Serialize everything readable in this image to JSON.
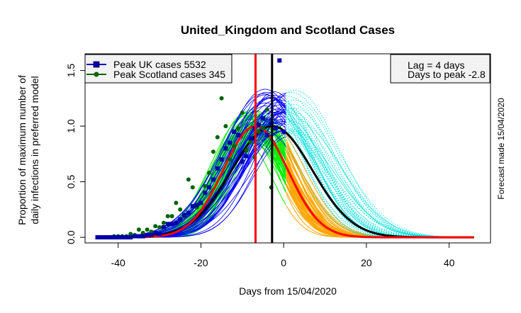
{
  "chart_data": {
    "type": "line",
    "title": "United_Kingdom and Scotland Cases",
    "xlabel": "Days from 15/04/2020",
    "ylabel_line1": "Proportion of maximum number of",
    "ylabel_line2": "daily infections in preferred model",
    "right_label": "Forecast made 15/04/2020",
    "xlim": [
      -48,
      50
    ],
    "ylim": [
      -0.05,
      1.65
    ],
    "xticks": [
      -40,
      -20,
      0,
      20,
      40
    ],
    "yticks": [
      0.0,
      0.5,
      1.0,
      1.5
    ],
    "xtick_labels": [
      "-40",
      "-20",
      "0",
      "20",
      "40"
    ],
    "ytick_labels": [
      "0.0",
      "0.5",
      "1.0",
      "1.5"
    ],
    "legend": {
      "position": "top-left",
      "entries": [
        {
          "label": "Peak UK cases 5532",
          "color": "#0000cc",
          "marker": "square"
        },
        {
          "label": "Peak Scotland cases 345",
          "color": "#ff0000",
          "marker": "circle"
        }
      ]
    },
    "info_box": {
      "position": "top-right",
      "lines": [
        "Lag =  4 days",
        "Days to peak -2.8"
      ]
    },
    "vertical_lines": [
      {
        "x": -6.8,
        "color": "#ff0000"
      },
      {
        "x": -2.8,
        "color": "#000000"
      }
    ],
    "models": {
      "uk_center": -2.8,
      "uk_sigma": 9.7,
      "scot_center": -6.8,
      "scot_sigma": 7.8,
      "forecast_start": 0.6,
      "x_start": -45,
      "x_end": 46
    },
    "uk_points": {
      "x": [
        -45,
        -44,
        -43,
        -42,
        -41,
        -40,
        -39,
        -38,
        -37,
        -36,
        -35,
        -34,
        -33,
        -32,
        -31,
        -30,
        -29,
        -28,
        -27,
        -26,
        -25,
        -24,
        -23,
        -22,
        -21,
        -20,
        -19,
        -18,
        -17,
        -16,
        -15,
        -14,
        -13,
        -12,
        -11,
        -10,
        -9,
        -8,
        -7,
        -6,
        -5,
        -4,
        -3,
        -2,
        -1,
        0
      ],
      "y": [
        0.0,
        0.0,
        0.0,
        0.0,
        0.0,
        0.0,
        0.0,
        0.0,
        0.0,
        0.01,
        0.01,
        0.01,
        0.02,
        0.02,
        0.04,
        0.03,
        0.09,
        0.12,
        0.12,
        0.13,
        0.16,
        0.2,
        0.22,
        0.28,
        0.29,
        0.31,
        0.4,
        0.45,
        0.52,
        0.62,
        0.7,
        0.8,
        0.85,
        0.95,
        0.92,
        0.68,
        0.73,
        0.89,
        0.98,
        1.01,
        1.07,
        0.92,
        1.02,
        0.98,
        1.59,
        0.95
      ]
    },
    "scot_points": {
      "x": [
        -44,
        -43,
        -41,
        -40,
        -39,
        -38,
        -37,
        -36,
        -35,
        -34,
        -33,
        -32,
        -31,
        -30,
        -29,
        -28,
        -27,
        -26,
        -25,
        -24,
        -23,
        -22,
        -21,
        -20,
        -19,
        -18,
        -17,
        -16,
        -15,
        -14,
        -13,
        -12,
        -11,
        -10,
        -9,
        -8,
        -7,
        -6,
        -5,
        -4,
        -3,
        -2
      ],
      "y": [
        0.0,
        0.0,
        0.01,
        0.01,
        0.01,
        0.01,
        0.03,
        0.02,
        0.07,
        0.04,
        0.07,
        0.05,
        0.1,
        0.09,
        0.13,
        0.19,
        0.19,
        0.31,
        0.25,
        0.19,
        0.52,
        0.45,
        0.27,
        0.31,
        0.46,
        0.58,
        0.77,
        0.9,
        1.25,
        1.0,
        0.7,
        0.82,
        0.98,
        1.12,
        0.78,
        0.86,
        0.72,
        0.95,
        0.98,
        1.15,
        0.45,
        0.98
      ]
    }
  }
}
